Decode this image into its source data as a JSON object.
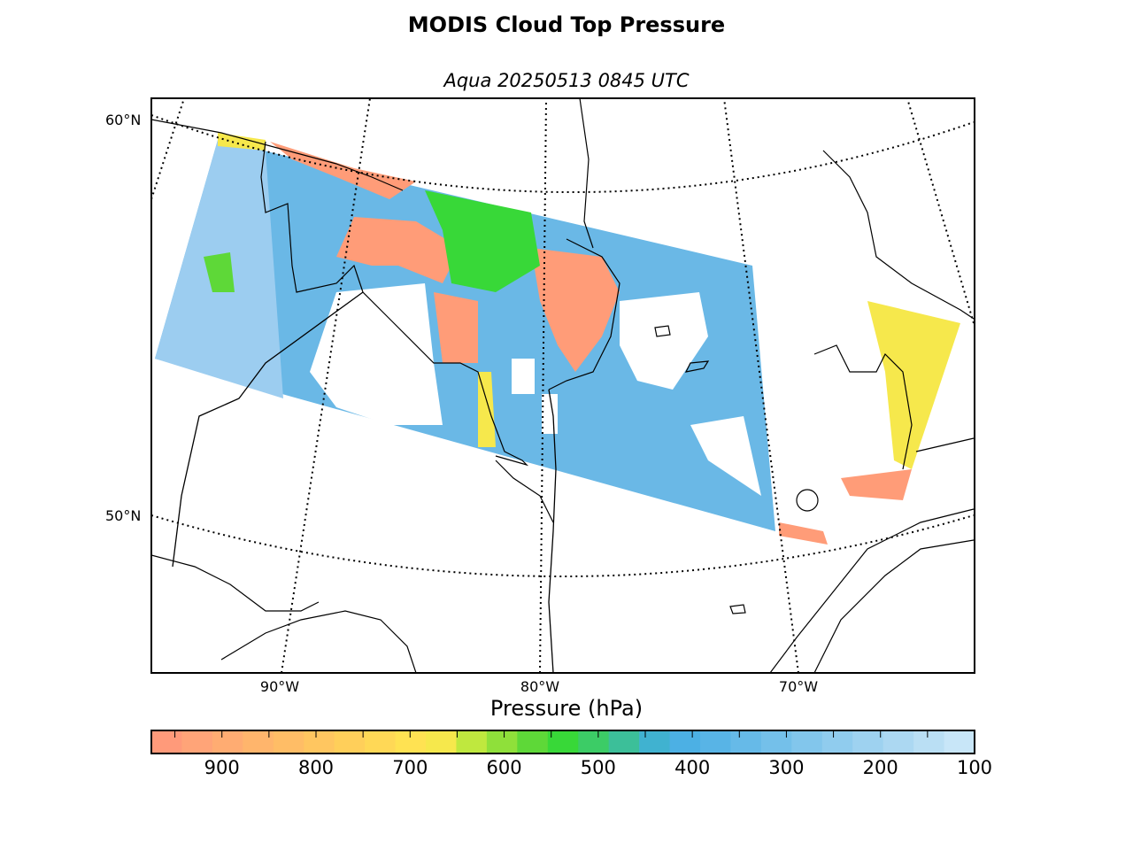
{
  "title": "MODIS Cloud Top Pressure",
  "subtitle": "Aqua 20250513 0845 UTC",
  "lat_labels": [
    "60°N",
    "50°N"
  ],
  "lon_labels": [
    "90°W",
    "80°W",
    "70°W"
  ],
  "colorbar": {
    "label": "Pressure (hPa)",
    "ticks": [
      "900",
      "800",
      "700",
      "600",
      "500",
      "400",
      "300",
      "200",
      "100"
    ],
    "range_hpa": [
      975,
      100
    ],
    "colors": [
      "#ff9a7a",
      "#ffa478",
      "#ffac72",
      "#ffb56c",
      "#ffbd66",
      "#ffc660",
      "#ffcf5a",
      "#ffd856",
      "#ffe252",
      "#f6e84c",
      "#bfe83e",
      "#8fe03a",
      "#5ed838",
      "#38d838",
      "#3ccc66",
      "#3cbf99",
      "#40b2d0",
      "#4cb0e4",
      "#58b4e6",
      "#66bae8",
      "#74c0ea",
      "#82c6ec",
      "#90ccee",
      "#9ed2f0",
      "#acd8f2",
      "#badff4",
      "#c8e6f8"
    ]
  },
  "colors": {
    "high_cloud": "#66b6e6",
    "low_cloud": "#ff9c78",
    "mid_cloud": "#38d838",
    "yellow_cloud": "#f6e84c"
  }
}
